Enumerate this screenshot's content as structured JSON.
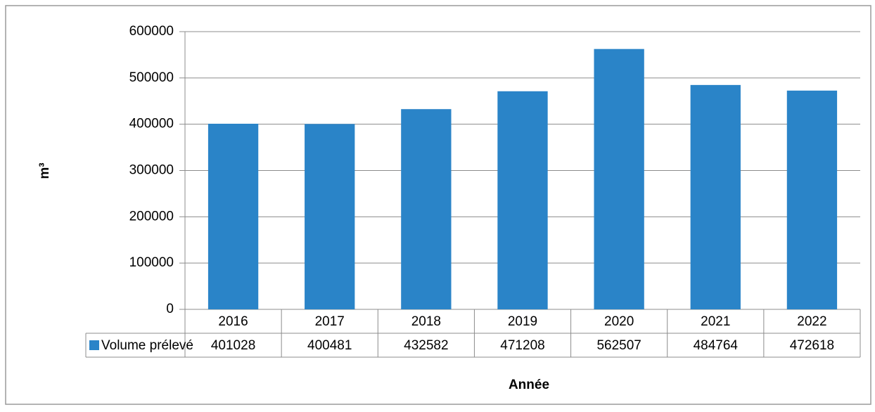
{
  "chart_data": {
    "type": "bar",
    "x_label": "Année",
    "y_label": "m³",
    "categories": [
      "2016",
      "2017",
      "2018",
      "2019",
      "2020",
      "2021",
      "2022"
    ],
    "series": [
      {
        "name": "Volume prélevé",
        "color": "#2a84c8",
        "values": [
          401028,
          400481,
          432582,
          471208,
          562507,
          484764,
          472618
        ]
      }
    ],
    "ylim": [
      0,
      600000
    ],
    "yticks": [
      0,
      100000,
      200000,
      300000,
      400000,
      500000,
      600000
    ],
    "grid": true,
    "legend": "data-table"
  }
}
